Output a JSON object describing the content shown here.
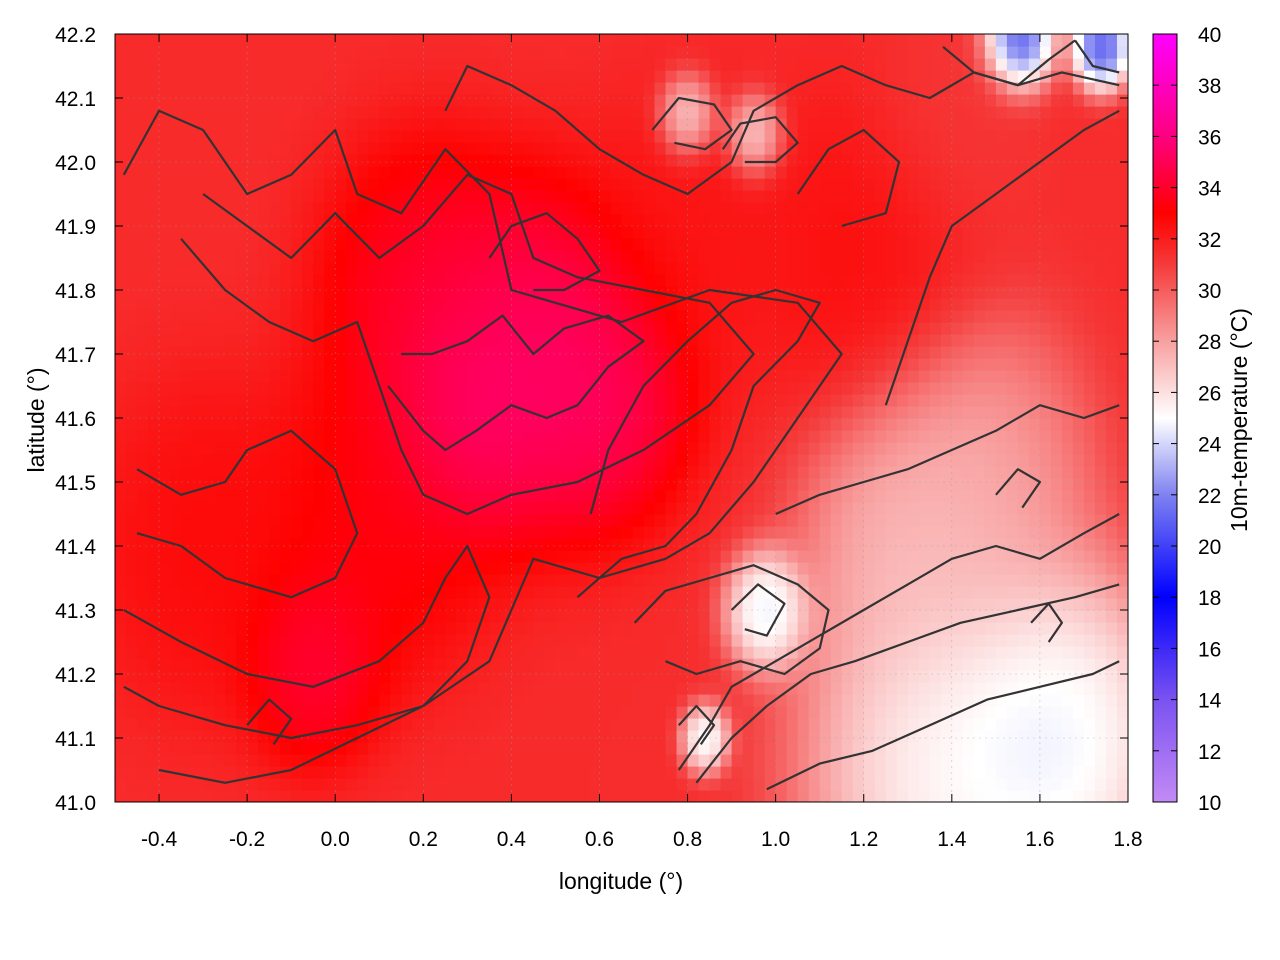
{
  "chart_data": {
    "type": "heatmap",
    "title": "",
    "xlabel": "longitude (°)",
    "ylabel": "latitude (°)",
    "colorbar_label": "10m-temperature (°C)",
    "xlim": [
      -0.5,
      1.8
    ],
    "ylim": [
      41.0,
      42.2
    ],
    "clim": [
      10,
      40
    ],
    "grid": true,
    "x_ticks": [
      -0.4,
      -0.2,
      0.0,
      0.2,
      0.4,
      0.6,
      0.8,
      1.0,
      1.2,
      1.4,
      1.6,
      1.8
    ],
    "x_tick_labels": [
      "-0.4",
      "-0.2",
      "0.0",
      "0.2",
      "0.4",
      "0.6",
      "0.8",
      "1.0",
      "1.2",
      "1.4",
      "1.6",
      "1.8"
    ],
    "y_ticks": [
      41.0,
      41.1,
      41.2,
      41.3,
      41.4,
      41.5,
      41.6,
      41.7,
      41.8,
      41.9,
      42.0,
      42.1,
      42.2
    ],
    "y_tick_labels": [
      "41.0",
      "41.1",
      "41.2",
      "41.3",
      "41.4",
      "41.5",
      "41.6",
      "41.7",
      "41.8",
      "41.9",
      "42.0",
      "42.1",
      "42.2"
    ],
    "colorbar_ticks": [
      10,
      12,
      14,
      16,
      18,
      20,
      22,
      24,
      26,
      28,
      30,
      32,
      34,
      36,
      38,
      40
    ],
    "colorbar_tick_labels": [
      "10",
      "12",
      "14",
      "16",
      "18",
      "20",
      "22",
      "24",
      "26",
      "28",
      "30",
      "32",
      "34",
      "36",
      "38",
      "40"
    ],
    "colormap_stops": [
      {
        "value": 10,
        "color": "#c38af5"
      },
      {
        "value": 14,
        "color": "#7a52f0"
      },
      {
        "value": 18,
        "color": "#0000ff"
      },
      {
        "value": 22,
        "color": "#7f82f0"
      },
      {
        "value": 25,
        "color": "#ffffff"
      },
      {
        "value": 28,
        "color": "#f8a0a0"
      },
      {
        "value": 31,
        "color": "#f53a3a"
      },
      {
        "value": 33,
        "color": "#ff0000"
      },
      {
        "value": 36,
        "color": "#ff0080"
      },
      {
        "value": 40,
        "color": "#ff00ff"
      }
    ],
    "hot_spots": [
      {
        "lon": 0.45,
        "lat": 41.7,
        "value": 36.0,
        "spread": 0.2
      },
      {
        "lon": 0.3,
        "lat": 41.62,
        "value": 36.3,
        "spread": 0.15
      },
      {
        "lon": 0.6,
        "lat": 41.65,
        "value": 35.8,
        "spread": 0.16
      },
      {
        "lon": -0.05,
        "lat": 41.22,
        "value": 35.0,
        "spread": 0.12
      },
      {
        "lon": 0.2,
        "lat": 41.8,
        "value": 34.5,
        "spread": 0.18
      },
      {
        "lon": 0.1,
        "lat": 41.45,
        "value": 33.8,
        "spread": 0.2
      },
      {
        "lon": -0.3,
        "lat": 41.4,
        "value": 33.0,
        "spread": 0.2
      },
      {
        "lon": 1.2,
        "lat": 41.85,
        "value": 32.8,
        "spread": 0.2
      },
      {
        "lon": 1.4,
        "lat": 42.05,
        "value": 31.0,
        "spread": 0.15
      },
      {
        "lon": 0.8,
        "lat": 41.88,
        "value": 32.5,
        "spread": 0.18
      }
    ],
    "cool_spots": [
      {
        "lon": 1.55,
        "lat": 42.19,
        "value": 17.0,
        "spread": 0.06
      },
      {
        "lon": 1.74,
        "lat": 42.18,
        "value": 18.0,
        "spread": 0.05
      },
      {
        "lon": 1.4,
        "lat": 41.05,
        "value": 23.5,
        "spread": 0.25
      },
      {
        "lon": 1.65,
        "lat": 41.1,
        "value": 23.0,
        "spread": 0.2
      },
      {
        "lon": 0.98,
        "lat": 41.3,
        "value": 22.5,
        "spread": 0.07
      },
      {
        "lon": 0.84,
        "lat": 41.1,
        "value": 23.0,
        "spread": 0.04
      },
      {
        "lon": 0.8,
        "lat": 42.07,
        "value": 24.5,
        "spread": 0.05
      },
      {
        "lon": 0.95,
        "lat": 42.04,
        "value": 24.5,
        "spread": 0.05
      },
      {
        "lon": 1.45,
        "lat": 41.5,
        "value": 27.0,
        "spread": 0.2
      },
      {
        "lon": 1.3,
        "lat": 41.4,
        "value": 26.5,
        "spread": 0.18
      }
    ],
    "contour_lines": [
      [
        [
          -0.48,
          41.98
        ],
        [
          -0.4,
          42.08
        ],
        [
          -0.3,
          42.05
        ],
        [
          -0.2,
          41.95
        ],
        [
          -0.1,
          41.98
        ],
        [
          0.0,
          42.05
        ],
        [
          0.05,
          41.95
        ],
        [
          0.15,
          41.92
        ],
        [
          0.25,
          42.02
        ],
        [
          0.35,
          41.95
        ],
        [
          0.4,
          41.8
        ],
        [
          0.5,
          41.78
        ],
        [
          0.65,
          41.75
        ],
        [
          0.85,
          41.8
        ],
        [
          1.05,
          41.78
        ],
        [
          1.15,
          41.7
        ],
        [
          1.05,
          41.6
        ],
        [
          0.95,
          41.5
        ],
        [
          0.85,
          41.42
        ],
        [
          0.75,
          41.38
        ],
        [
          0.6,
          41.35
        ],
        [
          0.45,
          41.38
        ],
        [
          0.4,
          41.3
        ],
        [
          0.35,
          41.22
        ],
        [
          0.2,
          41.15
        ],
        [
          0.05,
          41.1
        ],
        [
          -0.1,
          41.05
        ],
        [
          -0.25,
          41.03
        ],
        [
          -0.4,
          41.05
        ]
      ],
      [
        [
          -0.35,
          41.88
        ],
        [
          -0.25,
          41.8
        ],
        [
          -0.15,
          41.75
        ],
        [
          -0.05,
          41.72
        ],
        [
          0.05,
          41.75
        ],
        [
          0.1,
          41.65
        ],
        [
          0.15,
          41.55
        ],
        [
          0.2,
          41.48
        ],
        [
          0.3,
          41.45
        ],
        [
          0.4,
          41.48
        ],
        [
          0.55,
          41.5
        ],
        [
          0.7,
          41.55
        ],
        [
          0.85,
          41.62
        ],
        [
          0.95,
          41.7
        ],
        [
          0.85,
          41.78
        ],
        [
          0.7,
          41.8
        ],
        [
          0.55,
          41.82
        ],
        [
          0.45,
          41.85
        ],
        [
          0.4,
          41.95
        ],
        [
          0.3,
          41.98
        ],
        [
          0.2,
          41.9
        ],
        [
          0.1,
          41.85
        ],
        [
          0.0,
          41.92
        ],
        [
          -0.1,
          41.85
        ],
        [
          -0.2,
          41.9
        ],
        [
          -0.3,
          41.95
        ]
      ],
      [
        [
          0.12,
          41.65
        ],
        [
          0.2,
          41.58
        ],
        [
          0.25,
          41.55
        ],
        [
          0.32,
          41.58
        ],
        [
          0.4,
          41.62
        ],
        [
          0.48,
          41.6
        ],
        [
          0.55,
          41.62
        ],
        [
          0.62,
          41.68
        ],
        [
          0.7,
          41.72
        ],
        [
          0.62,
          41.76
        ],
        [
          0.52,
          41.74
        ],
        [
          0.45,
          41.7
        ],
        [
          0.38,
          41.76
        ],
        [
          0.3,
          41.72
        ],
        [
          0.22,
          41.7
        ],
        [
          0.15,
          41.7
        ]
      ],
      [
        [
          -0.45,
          41.52
        ],
        [
          -0.35,
          41.48
        ],
        [
          -0.25,
          41.5
        ],
        [
          -0.2,
          41.55
        ],
        [
          -0.1,
          41.58
        ],
        [
          0.0,
          41.52
        ],
        [
          0.05,
          41.42
        ],
        [
          0.0,
          41.35
        ],
        [
          -0.1,
          41.32
        ],
        [
          -0.25,
          41.35
        ],
        [
          -0.35,
          41.4
        ],
        [
          -0.45,
          41.42
        ]
      ],
      [
        [
          -0.48,
          41.3
        ],
        [
          -0.35,
          41.25
        ],
        [
          -0.2,
          41.2
        ],
        [
          -0.05,
          41.18
        ],
        [
          0.1,
          41.22
        ],
        [
          0.2,
          41.28
        ],
        [
          0.25,
          41.35
        ],
        [
          0.3,
          41.4
        ],
        [
          0.35,
          41.32
        ],
        [
          0.3,
          41.22
        ],
        [
          0.2,
          41.15
        ],
        [
          0.05,
          41.12
        ],
        [
          -0.1,
          41.1
        ],
        [
          -0.25,
          41.12
        ],
        [
          -0.4,
          41.15
        ],
        [
          -0.48,
          41.18
        ]
      ],
      [
        [
          0.55,
          41.32
        ],
        [
          0.65,
          41.38
        ],
        [
          0.75,
          41.4
        ],
        [
          0.82,
          41.45
        ],
        [
          0.9,
          41.55
        ],
        [
          0.95,
          41.65
        ],
        [
          1.05,
          41.72
        ],
        [
          1.1,
          41.78
        ],
        [
          1.0,
          41.8
        ],
        [
          0.9,
          41.78
        ],
        [
          0.8,
          41.72
        ],
        [
          0.7,
          41.65
        ],
        [
          0.62,
          41.55
        ],
        [
          0.58,
          41.45
        ]
      ],
      [
        [
          0.68,
          41.28
        ],
        [
          0.75,
          41.33
        ],
        [
          0.85,
          41.35
        ],
        [
          0.95,
          41.37
        ],
        [
          1.05,
          41.34
        ],
        [
          1.12,
          41.3
        ],
        [
          1.1,
          41.24
        ],
        [
          1.02,
          41.2
        ],
        [
          0.92,
          41.22
        ],
        [
          0.82,
          41.2
        ],
        [
          0.75,
          41.22
        ]
      ],
      [
        [
          0.9,
          41.3
        ],
        [
          0.96,
          41.34
        ],
        [
          1.02,
          41.31
        ],
        [
          0.98,
          41.26
        ],
        [
          0.93,
          41.27
        ]
      ],
      [
        [
          0.78,
          41.05
        ],
        [
          0.85,
          41.12
        ],
        [
          0.9,
          41.18
        ],
        [
          1.0,
          41.22
        ],
        [
          1.1,
          41.26
        ],
        [
          1.2,
          41.3
        ],
        [
          1.3,
          41.34
        ],
        [
          1.4,
          41.38
        ],
        [
          1.5,
          41.4
        ],
        [
          1.6,
          41.38
        ],
        [
          1.7,
          41.42
        ],
        [
          1.78,
          41.45
        ]
      ],
      [
        [
          0.82,
          41.03
        ],
        [
          0.9,
          41.1
        ],
        [
          0.98,
          41.15
        ],
        [
          1.08,
          41.2
        ],
        [
          1.18,
          41.22
        ],
        [
          1.3,
          41.25
        ],
        [
          1.42,
          41.28
        ],
        [
          1.55,
          41.3
        ],
        [
          1.68,
          41.32
        ],
        [
          1.78,
          41.34
        ]
      ],
      [
        [
          0.98,
          41.02
        ],
        [
          1.1,
          41.06
        ],
        [
          1.22,
          41.08
        ],
        [
          1.35,
          41.12
        ],
        [
          1.48,
          41.16
        ],
        [
          1.6,
          41.18
        ],
        [
          1.72,
          41.2
        ],
        [
          1.78,
          41.22
        ]
      ],
      [
        [
          1.0,
          41.45
        ],
        [
          1.1,
          41.48
        ],
        [
          1.2,
          41.5
        ],
        [
          1.3,
          41.52
        ],
        [
          1.4,
          41.55
        ],
        [
          1.5,
          41.58
        ],
        [
          1.6,
          41.62
        ],
        [
          1.7,
          41.6
        ],
        [
          1.78,
          41.62
        ]
      ],
      [
        [
          1.25,
          41.62
        ],
        [
          1.3,
          41.72
        ],
        [
          1.35,
          41.82
        ],
        [
          1.4,
          41.9
        ],
        [
          1.5,
          41.95
        ],
        [
          1.6,
          42.0
        ],
        [
          1.7,
          42.05
        ],
        [
          1.78,
          42.08
        ]
      ],
      [
        [
          0.25,
          42.08
        ],
        [
          0.3,
          42.15
        ],
        [
          0.4,
          42.12
        ],
        [
          0.5,
          42.08
        ],
        [
          0.6,
          42.02
        ],
        [
          0.7,
          41.98
        ],
        [
          0.8,
          41.95
        ],
        [
          0.9,
          42.0
        ],
        [
          0.95,
          42.08
        ],
        [
          1.05,
          42.12
        ],
        [
          1.15,
          42.15
        ],
        [
          1.25,
          42.12
        ],
        [
          1.35,
          42.1
        ],
        [
          1.45,
          42.14
        ],
        [
          1.55,
          42.12
        ],
        [
          1.65,
          42.14
        ],
        [
          1.78,
          42.12
        ]
      ],
      [
        [
          0.72,
          42.05
        ],
        [
          0.78,
          42.1
        ],
        [
          0.86,
          42.09
        ],
        [
          0.9,
          42.05
        ],
        [
          0.84,
          42.02
        ],
        [
          0.77,
          42.03
        ]
      ],
      [
        [
          0.88,
          42.02
        ],
        [
          0.92,
          42.06
        ],
        [
          1.0,
          42.07
        ],
        [
          1.05,
          42.03
        ],
        [
          1.0,
          42.0
        ],
        [
          0.93,
          42.0
        ]
      ],
      [
        [
          1.38,
          42.18
        ],
        [
          1.45,
          42.14
        ],
        [
          1.55,
          42.12
        ],
        [
          1.62,
          42.16
        ],
        [
          1.68,
          42.19
        ]
      ],
      [
        [
          1.68,
          42.19
        ],
        [
          1.72,
          42.15
        ],
        [
          1.78,
          42.14
        ]
      ],
      [
        [
          0.35,
          41.85
        ],
        [
          0.4,
          41.9
        ],
        [
          0.48,
          41.92
        ],
        [
          0.55,
          41.88
        ],
        [
          0.6,
          41.83
        ],
        [
          0.52,
          41.8
        ],
        [
          0.45,
          41.8
        ]
      ],
      [
        [
          1.05,
          41.95
        ],
        [
          1.12,
          42.02
        ],
        [
          1.2,
          42.05
        ],
        [
          1.28,
          42.0
        ],
        [
          1.25,
          41.92
        ],
        [
          1.15,
          41.9
        ]
      ],
      [
        [
          0.78,
          41.12
        ],
        [
          0.82,
          41.15
        ],
        [
          0.86,
          41.12
        ],
        [
          0.83,
          41.09
        ]
      ],
      [
        [
          1.5,
          41.48
        ],
        [
          1.55,
          41.52
        ],
        [
          1.6,
          41.5
        ],
        [
          1.56,
          41.46
        ]
      ],
      [
        [
          -0.2,
          41.12
        ],
        [
          -0.15,
          41.16
        ],
        [
          -0.1,
          41.13
        ],
        [
          -0.14,
          41.09
        ]
      ],
      [
        [
          1.58,
          41.28
        ],
        [
          1.62,
          41.31
        ],
        [
          1.65,
          41.28
        ],
        [
          1.62,
          41.25
        ]
      ]
    ]
  }
}
